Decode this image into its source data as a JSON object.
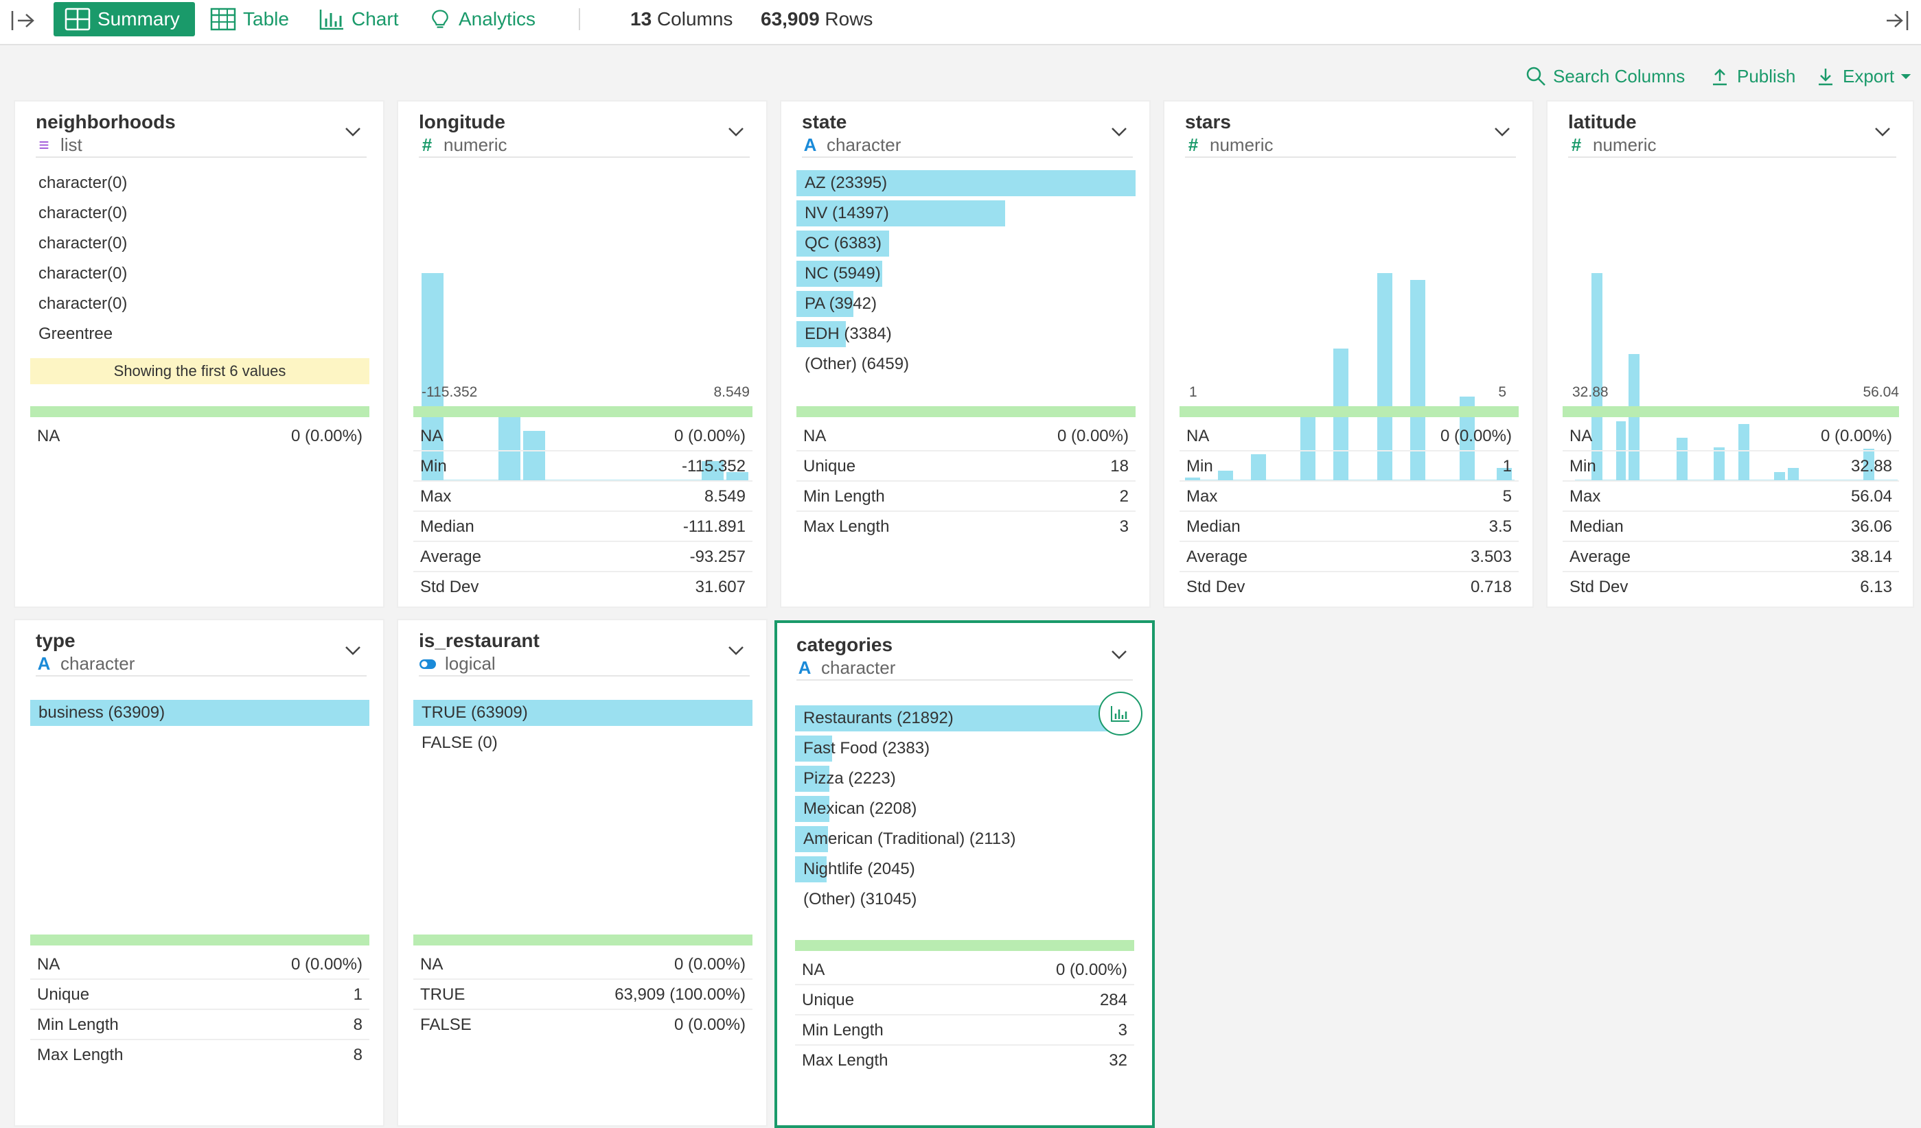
{
  "topbar": {
    "tabs": [
      {
        "label": "Summary",
        "icon": "summary-grid-icon",
        "active": true
      },
      {
        "label": "Table",
        "icon": "table-icon",
        "active": false
      },
      {
        "label": "Chart",
        "icon": "bar-chart-icon",
        "active": false
      },
      {
        "label": "Analytics",
        "icon": "lightbulb-icon",
        "active": false
      }
    ],
    "columns_count": "13",
    "columns_label": "Columns",
    "rows_count": "63,909",
    "rows_label": "Rows"
  },
  "toolbar": {
    "search_label": "Search Columns",
    "publish_label": "Publish",
    "export_label": "Export"
  },
  "colors": {
    "accent": "#1a9a6a",
    "bar": "#9be0f0",
    "na_bar": "#b9ecb1",
    "note_bg": "#fdf5c4"
  },
  "cards": {
    "neighborhoods": {
      "name": "neighborhoods",
      "type": "list",
      "type_icon": "≡",
      "values": [
        "character(0)",
        "character(0)",
        "character(0)",
        "character(0)",
        "character(0)",
        "Greentree"
      ],
      "note": "Showing the first 6 values",
      "stats": [
        {
          "label": "NA",
          "value": "0 (0.00%)"
        }
      ]
    },
    "longitude": {
      "name": "longitude",
      "type": "numeric",
      "type_icon": "#",
      "axis_min": "-115.352",
      "axis_max": "8.549",
      "stats": [
        {
          "label": "NA",
          "value": "0 (0.00%)"
        },
        {
          "label": "Min",
          "value": "-115.352"
        },
        {
          "label": "Max",
          "value": "8.549"
        },
        {
          "label": "Median",
          "value": "-111.891"
        },
        {
          "label": "Average",
          "value": "-93.257"
        },
        {
          "label": "Std Dev",
          "value": "31.607"
        }
      ]
    },
    "state": {
      "name": "state",
      "type": "character",
      "type_icon": "A",
      "bars": [
        {
          "label": "AZ (23395)",
          "fraction": 1.0
        },
        {
          "label": "NV (14397)",
          "fraction": 0.615
        },
        {
          "label": "QC (6383)",
          "fraction": 0.273
        },
        {
          "label": "NC (5949)",
          "fraction": 0.254
        },
        {
          "label": "PA (3942)",
          "fraction": 0.168
        },
        {
          "label": "EDH (3384)",
          "fraction": 0.145
        },
        {
          "label": "(Other) (6459)",
          "fraction": 0
        }
      ],
      "stats": [
        {
          "label": "NA",
          "value": "0 (0.00%)"
        },
        {
          "label": "Unique",
          "value": "18"
        },
        {
          "label": "Min Length",
          "value": "2"
        },
        {
          "label": "Max Length",
          "value": "3"
        }
      ]
    },
    "stars": {
      "name": "stars",
      "type": "numeric",
      "type_icon": "#",
      "axis_min": "1",
      "axis_max": "5",
      "stats": [
        {
          "label": "NA",
          "value": "0 (0.00%)"
        },
        {
          "label": "Min",
          "value": "1"
        },
        {
          "label": "Max",
          "value": "5"
        },
        {
          "label": "Median",
          "value": "3.5"
        },
        {
          "label": "Average",
          "value": "3.503"
        },
        {
          "label": "Std Dev",
          "value": "0.718"
        }
      ]
    },
    "latitude": {
      "name": "latitude",
      "type": "numeric",
      "type_icon": "#",
      "axis_min": "32.88",
      "axis_max": "56.04",
      "stats": [
        {
          "label": "NA",
          "value": "0 (0.00%)"
        },
        {
          "label": "Min",
          "value": "32.88"
        },
        {
          "label": "Max",
          "value": "56.04"
        },
        {
          "label": "Median",
          "value": "36.06"
        },
        {
          "label": "Average",
          "value": "38.14"
        },
        {
          "label": "Std Dev",
          "value": "6.13"
        }
      ]
    },
    "type": {
      "name": "type",
      "type": "character",
      "type_icon": "A",
      "bars": [
        {
          "label": "business (63909)",
          "fraction": 1.0
        }
      ],
      "stats": [
        {
          "label": "NA",
          "value": "0 (0.00%)"
        },
        {
          "label": "Unique",
          "value": "1"
        },
        {
          "label": "Min Length",
          "value": "8"
        },
        {
          "label": "Max Length",
          "value": "8"
        }
      ]
    },
    "is_restaurant": {
      "name": "is_restaurant",
      "type": "logical",
      "type_icon": "toggle",
      "bars": [
        {
          "label": "TRUE (63909)",
          "fraction": 1.0
        },
        {
          "label": "FALSE (0)",
          "fraction": 0
        }
      ],
      "stats": [
        {
          "label": "NA",
          "value": "0 (0.00%)"
        },
        {
          "label": "TRUE",
          "value": "63,909 (100.00%)"
        },
        {
          "label": "FALSE",
          "value": "0 (0.00%)"
        }
      ]
    },
    "categories": {
      "name": "categories",
      "type": "character",
      "type_icon": "A",
      "bars": [
        {
          "label": "Restaurants (21892)",
          "fraction": 1.0
        },
        {
          "label": "Fast Food (2383)",
          "fraction": 0.109
        },
        {
          "label": "Pizza (2223)",
          "fraction": 0.102
        },
        {
          "label": "Mexican (2208)",
          "fraction": 0.101
        },
        {
          "label": "American (Traditional) (2113)",
          "fraction": 0.097
        },
        {
          "label": "Nightlife (2045)",
          "fraction": 0.093
        },
        {
          "label": "(Other) (31045)",
          "fraction": 0
        }
      ],
      "stats": [
        {
          "label": "NA",
          "value": "0 (0.00%)"
        },
        {
          "label": "Unique",
          "value": "284"
        },
        {
          "label": "Min Length",
          "value": "3"
        },
        {
          "label": "Max Length",
          "value": "32"
        }
      ]
    }
  }
}
